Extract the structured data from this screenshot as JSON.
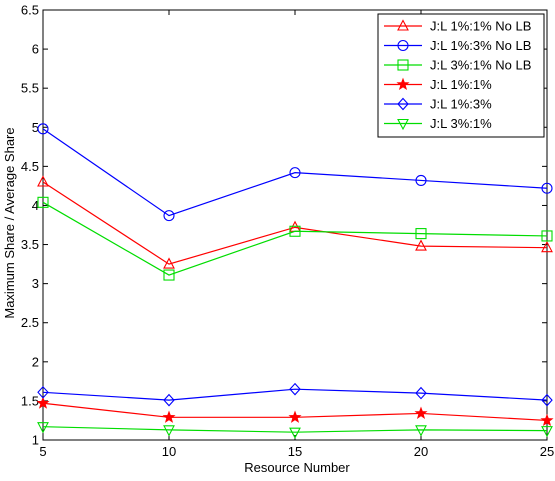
{
  "chart_data": {
    "type": "line",
    "title": "",
    "xlabel": "Resource Number",
    "ylabel": "Maximum Share / Average Share",
    "x": [
      5,
      10,
      15,
      20,
      25
    ],
    "xlim": [
      5,
      25
    ],
    "ylim": [
      1,
      6.5
    ],
    "x_ticks": [
      5,
      10,
      15,
      20,
      25
    ],
    "y_ticks": [
      1,
      1.5,
      2,
      2.5,
      3,
      3.5,
      4,
      4.5,
      5,
      5.5,
      6,
      6.5
    ],
    "x_tick_labels": [
      "5",
      "10",
      "15",
      "20",
      "25"
    ],
    "y_tick_labels": [
      "1",
      "1.5",
      "2",
      "2.5",
      "3",
      "3.5",
      "4",
      "4.5",
      "5",
      "5.5",
      "6",
      "6.5"
    ],
    "grid": false,
    "legend_position": "top-right",
    "series": [
      {
        "name": "J:L 1%:1% No LB",
        "color": "#ff0000",
        "marker": "triangle-up",
        "values": [
          4.3,
          3.25,
          3.72,
          3.48,
          3.46
        ]
      },
      {
        "name": "J:L 1%:3% No LB",
        "color": "#0000ff",
        "marker": "circle",
        "values": [
          4.98,
          3.87,
          4.42,
          4.32,
          4.22
        ]
      },
      {
        "name": "J:L 3%:1% No LB",
        "color": "#00dd00",
        "marker": "square",
        "values": [
          4.04,
          3.11,
          3.67,
          3.64,
          3.61
        ]
      },
      {
        "name": "J:L 1%:1%",
        "color": "#ff0000",
        "marker": "star",
        "values": [
          1.47,
          1.29,
          1.29,
          1.34,
          1.25
        ]
      },
      {
        "name": "J:L 1%:3%",
        "color": "#0000ff",
        "marker": "diamond",
        "values": [
          1.61,
          1.51,
          1.65,
          1.6,
          1.51
        ]
      },
      {
        "name": "J:L 3%:1%",
        "color": "#00dd00",
        "marker": "triangle-down",
        "values": [
          1.17,
          1.13,
          1.1,
          1.13,
          1.12
        ]
      }
    ]
  }
}
